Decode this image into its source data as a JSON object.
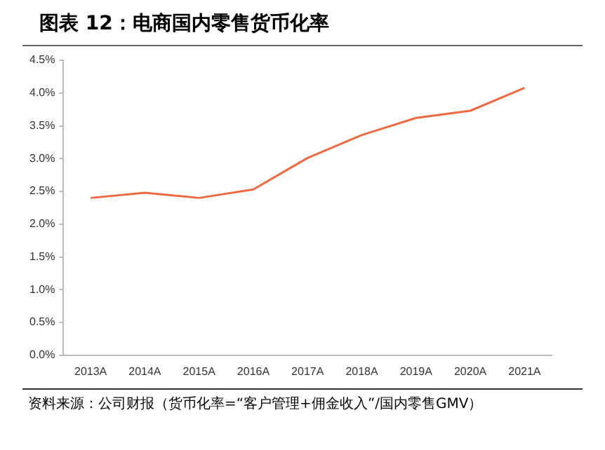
{
  "chart_data": {
    "type": "line",
    "title": "图表 12：电商国内零售货币化率",
    "categories": [
      "2013A",
      "2014A",
      "2015A",
      "2016A",
      "2017A",
      "2018A",
      "2019A",
      "2020A",
      "2021A"
    ],
    "series": [
      {
        "color": "#ed6a43",
        "values": [
          2.4,
          2.48,
          2.4,
          2.53,
          3.01,
          3.36,
          3.62,
          3.73,
          4.08
        ]
      }
    ],
    "ylim": [
      0,
      4.5
    ],
    "yticks": [
      {
        "value": 0,
        "label": "0.0%"
      },
      {
        "value": 0.5,
        "label": "0.5%"
      },
      {
        "value": 1,
        "label": "1.0%"
      },
      {
        "value": 1.5,
        "label": "1.5%"
      },
      {
        "value": 2,
        "label": "2.0%"
      },
      {
        "value": 2.5,
        "label": "2.5%"
      },
      {
        "value": 3,
        "label": "3.0%"
      },
      {
        "value": 3.5,
        "label": "3.5%"
      },
      {
        "value": 4,
        "label": "4.0%"
      },
      {
        "value": 4.5,
        "label": "4.5%"
      }
    ],
    "grid": false,
    "legend": false,
    "marker": "none",
    "annotations": [
      "资料来源：公司财报（货币化率=“客户管理+佣金收入”/国内零售GMV）"
    ]
  }
}
